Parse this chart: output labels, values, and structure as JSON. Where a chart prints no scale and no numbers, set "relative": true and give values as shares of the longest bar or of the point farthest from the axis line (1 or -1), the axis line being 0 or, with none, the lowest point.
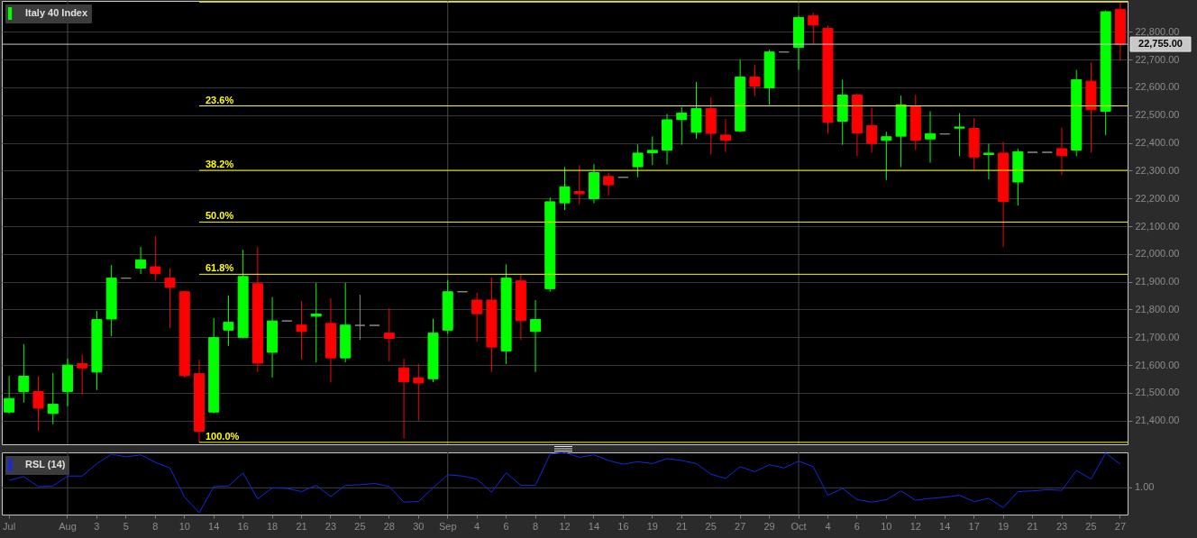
{
  "chart_data": [
    {
      "type": "candlestick",
      "categories": [
        "Jul",
        null,
        null,
        null,
        "Aug",
        null,
        "3",
        null,
        "5",
        null,
        "8",
        null,
        "10",
        null,
        "14",
        null,
        "16",
        null,
        "18",
        null,
        "21",
        null,
        "23",
        null,
        "25",
        null,
        "28",
        null,
        "30",
        null,
        "Sep",
        null,
        "4",
        null,
        "6",
        null,
        "8",
        null,
        "12",
        null,
        "14",
        null,
        "16",
        null,
        "19",
        null,
        "21",
        null,
        "25",
        null,
        "27",
        null,
        "29",
        null,
        "Oct",
        null,
        "4",
        null,
        "6",
        null,
        "10",
        null,
        "12",
        null,
        "14",
        null,
        "17",
        null,
        "19",
        null,
        "21",
        null,
        "23",
        null,
        "25",
        null,
        "27"
      ],
      "series": [
        {
          "name": "Italy 40 Index",
          "color": "#00ff00",
          "ohlc": [
            [
              21431,
              21561,
              21424,
              21480
            ],
            [
              21505,
              21676,
              21465,
              21560
            ],
            [
              21505,
              21560,
              21363,
              21445
            ],
            [
              21426,
              21572,
              21387,
              21459
            ],
            [
              21505,
              21623,
              21452,
              21600
            ],
            [
              21605,
              21638,
              21494,
              21590
            ],
            [
              21575,
              21795,
              21510,
              21764
            ],
            [
              21766,
              21960,
              21704,
              21913
            ],
            [
              21913,
              21913,
              21913,
              21913
            ],
            [
              21949,
              22025,
              21928,
              21979
            ],
            [
              21954,
              22064,
              21905,
              21930
            ],
            [
              21913,
              21949,
              21733,
              21880
            ],
            [
              21864,
              21868,
              21555,
              21562
            ],
            [
              21569,
              21620,
              21322,
              21362
            ],
            [
              21431,
              21769,
              21426,
              21699
            ],
            [
              21726,
              21850,
              21669,
              21754
            ],
            [
              21700,
              22015,
              21696,
              21919
            ],
            [
              21893,
              22025,
              21575,
              21607
            ],
            [
              21646,
              21845,
              21555,
              21759
            ],
            [
              21759,
              21759,
              21759,
              21759
            ],
            [
              21744,
              21831,
              21620,
              21721
            ],
            [
              21776,
              21896,
              21610,
              21784
            ],
            [
              21750,
              21840,
              21539,
              21626
            ],
            [
              21626,
              21896,
              21610,
              21744
            ],
            [
              21743,
              21853,
              21691,
              21743
            ],
            [
              21743,
              21743,
              21743,
              21743
            ],
            [
              21715,
              21805,
              21613,
              21696
            ],
            [
              21590,
              21623,
              21335,
              21540
            ],
            [
              21554,
              21605,
              21400,
              21536
            ],
            [
              21551,
              21767,
              21539,
              21715
            ],
            [
              21726,
              21906,
              21712,
              21864
            ],
            [
              21864,
              21864,
              21864,
              21864
            ],
            [
              21834,
              21860,
              21685,
              21785
            ],
            [
              21834,
              21915,
              21575,
              21665
            ],
            [
              21651,
              21963,
              21604,
              21913
            ],
            [
              21903,
              21927,
              21691,
              21760
            ],
            [
              21721,
              21834,
              21575,
              21764
            ],
            [
              21875,
              22203,
              21864,
              22188
            ],
            [
              22184,
              22313,
              22158,
              22242
            ],
            [
              22225,
              22320,
              22179,
              22217
            ],
            [
              22199,
              22323,
              22183,
              22293
            ],
            [
              22279,
              22293,
              22210,
              22249
            ],
            [
              22276,
              22276,
              22276,
              22276
            ],
            [
              22314,
              22394,
              22276,
              22363
            ],
            [
              22364,
              22423,
              22320,
              22373
            ],
            [
              22374,
              22504,
              22322,
              22483
            ],
            [
              22484,
              22528,
              22393,
              22507
            ],
            [
              22438,
              22619,
              22415,
              22523
            ],
            [
              22523,
              22563,
              22358,
              22434
            ],
            [
              22428,
              22485,
              22367,
              22409
            ],
            [
              22443,
              22699,
              22438,
              22637
            ],
            [
              22637,
              22680,
              22568,
              22604
            ],
            [
              22598,
              22735,
              22537,
              22727
            ],
            [
              22727,
              22727,
              22727,
              22727
            ],
            [
              22744,
              22857,
              22663,
              22851
            ],
            [
              22857,
              22868,
              22755,
              22824
            ],
            [
              22812,
              22822,
              22433,
              22474
            ],
            [
              22478,
              22627,
              22393,
              22572
            ],
            [
              22572,
              22578,
              22352,
              22435
            ],
            [
              22462,
              22527,
              22365,
              22398
            ],
            [
              22409,
              22440,
              22266,
              22422
            ],
            [
              22424,
              22570,
              22313,
              22537
            ],
            [
              22532,
              22573,
              22374,
              22409
            ],
            [
              22414,
              22514,
              22328,
              22433
            ],
            [
              22432,
              22432,
              22432,
              22432
            ],
            [
              22453,
              22507,
              22352,
              22457
            ],
            [
              22452,
              22489,
              22303,
              22349
            ],
            [
              22358,
              22397,
              22268,
              22363
            ],
            [
              22363,
              22404,
              22025,
              22189
            ],
            [
              22259,
              22379,
              22174,
              22368
            ],
            [
              22366,
              22366,
              22366,
              22366
            ],
            [
              22366,
              22366,
              22366,
              22366
            ],
            [
              22379,
              22455,
              22284,
              22354
            ],
            [
              22374,
              22663,
              22352,
              22627
            ],
            [
              22622,
              22690,
              22366,
              22519
            ],
            [
              22514,
              22876,
              22428,
              22872
            ],
            [
              22881,
              22907,
              22697,
              22755
            ]
          ],
          "colors": [
            "#00ff00",
            "#00ff00",
            "#ff0000",
            "#00ff00",
            "#00ff00",
            "#ff0000",
            "#00ff00",
            "#00ff00",
            "#8c8c8c",
            "#00ff00",
            "#ff0000",
            "#ff0000",
            "#ff0000",
            "#ff0000",
            "#00ff00",
            "#00ff00",
            "#00ff00",
            "#ff0000",
            "#00ff00",
            "#8c8c8c",
            "#ff0000",
            "#00ff00",
            "#ff0000",
            "#00ff00",
            "#8c8c8c",
            "#8c8c8c",
            "#ff0000",
            "#ff0000",
            "#ff0000",
            "#00ff00",
            "#00ff00",
            "#8c8c8c",
            "#ff0000",
            "#ff0000",
            "#00ff00",
            "#ff0000",
            "#00ff00",
            "#00ff00",
            "#00ff00",
            "#ff0000",
            "#00ff00",
            "#ff0000",
            "#8c8c8c",
            "#00ff00",
            "#00ff00",
            "#00ff00",
            "#00ff00",
            "#00ff00",
            "#ff0000",
            "#ff0000",
            "#00ff00",
            "#ff0000",
            "#00ff00",
            "#8c8c8c",
            "#00ff00",
            "#ff0000",
            "#ff0000",
            "#00ff00",
            "#ff0000",
            "#ff0000",
            "#00ff00",
            "#00ff00",
            "#ff0000",
            "#00ff00",
            "#8c8c8c",
            "#00ff00",
            "#ff0000",
            "#00ff00",
            "#ff0000",
            "#00ff00",
            "#8c8c8c",
            "#8c8c8c",
            "#ff0000",
            "#00ff00",
            "#ff0000",
            "#00ff00",
            "#ff0000"
          ]
        }
      ],
      "ylim": [
        21315,
        22911
      ],
      "yticks": [
        {
          "value": 21400,
          "label": "21,400.00"
        },
        {
          "value": 21500,
          "label": "21,500.00"
        },
        {
          "value": 21600,
          "label": "21,600.00"
        },
        {
          "value": 21700,
          "label": "21,700.00"
        },
        {
          "value": 21800,
          "label": "21,800.00"
        },
        {
          "value": 21900,
          "label": "21,900.00"
        },
        {
          "value": 22000,
          "label": "22,000.00"
        },
        {
          "value": 22100,
          "label": "22,100.00"
        },
        {
          "value": 22200,
          "label": "22,200.00"
        },
        {
          "value": 22300,
          "label": "22,300.00"
        },
        {
          "value": 22400,
          "label": "22,400.00"
        },
        {
          "value": 22500,
          "label": "22,500.00"
        },
        {
          "value": 22600,
          "label": "22,600.00"
        },
        {
          "value": 22700,
          "label": "22,700.00"
        },
        {
          "value": 22800,
          "label": "22,800.00"
        }
      ],
      "grid": "y",
      "legend": "top left",
      "tick_labels": "y",
      "ref_lines": [
        {
          "axis": "x",
          "value": "Aug",
          "color": "#484848"
        },
        {
          "axis": "x",
          "value": "Sep",
          "color": "#484848"
        },
        {
          "axis": "x",
          "value": "Oct",
          "color": "#484848"
        },
        {
          "axis": "y",
          "value": 22907,
          "color": "#ffff00"
        },
        {
          "axis": "y",
          "value": 22533,
          "color": "#ffff00"
        },
        {
          "axis": "y",
          "value": 22301,
          "color": "#ffff00"
        },
        {
          "axis": "y",
          "value": 22115,
          "color": "#ffff00"
        },
        {
          "axis": "y",
          "value": 21927,
          "color": "#ffff00"
        },
        {
          "axis": "y",
          "value": 21322,
          "color": "#ffff00"
        },
        {
          "axis": "y",
          "value": 22755,
          "label": "22,755.00",
          "color": "#c8c8c8"
        }
      ],
      "annotations": [
        {
          "text": "23.6%",
          "y": 22533
        },
        {
          "text": "38.2%",
          "y": 22301
        },
        {
          "text": "50.0%",
          "y": 22115
        },
        {
          "text": "61.8%",
          "y": 21927
        },
        {
          "text": "100.0%",
          "y": 21322
        }
      ]
    },
    {
      "type": "line",
      "relative": true,
      "categories": [
        "Jul",
        null,
        null,
        null,
        "Aug",
        null,
        "3",
        null,
        "5",
        null,
        "8",
        null,
        "10",
        null,
        "14",
        null,
        "16",
        null,
        "18",
        null,
        "21",
        null,
        "23",
        null,
        "25",
        null,
        "28",
        null,
        "30",
        null,
        "Sep",
        null,
        "4",
        null,
        "6",
        null,
        "8",
        null,
        "12",
        null,
        "14",
        null,
        "16",
        null,
        "19",
        null,
        "21",
        null,
        "25",
        null,
        "27",
        null,
        "29",
        null,
        "Oct",
        null,
        "4",
        null,
        "6",
        null,
        "10",
        null,
        "12",
        null,
        "14",
        null,
        "17",
        null,
        "19",
        null,
        "21",
        null,
        "23",
        null,
        "25",
        null,
        "27"
      ],
      "series": [
        {
          "name": "RSL (14)",
          "color": "#1428e6",
          "values": [
            0.55,
            0.61,
            0.45,
            0.46,
            0.62,
            0.62,
            0.82,
            0.97,
            0.93,
            0.96,
            0.84,
            0.75,
            0.28,
            0.03,
            0.45,
            0.46,
            0.67,
            0.25,
            0.43,
            0.42,
            0.37,
            0.47,
            0.29,
            0.47,
            0.48,
            0.5,
            0.45,
            0.2,
            0.21,
            0.43,
            0.64,
            0.62,
            0.57,
            0.36,
            0.67,
            0.47,
            0.47,
            0.97,
            1.0,
            0.92,
            0.96,
            0.87,
            0.81,
            0.85,
            0.82,
            0.9,
            0.87,
            0.82,
            0.65,
            0.58,
            0.77,
            0.69,
            0.8,
            0.75,
            0.86,
            0.77,
            0.31,
            0.42,
            0.24,
            0.2,
            0.24,
            0.38,
            0.23,
            0.26,
            0.28,
            0.31,
            0.21,
            0.26,
            0.11,
            0.37,
            0.38,
            0.4,
            0.39,
            0.71,
            0.57,
            0.99,
            0.81
          ]
        }
      ],
      "legend": "top left",
      "tick_labels": "x",
      "ref_lines": [
        {
          "axis": "x",
          "value": "Aug",
          "color": "#484848"
        },
        {
          "axis": "x",
          "value": "Sep",
          "color": "#484848"
        },
        {
          "axis": "x",
          "value": "Oct",
          "color": "#484848"
        },
        {
          "axis": "y",
          "value": 0.43,
          "color": "#404040"
        }
      ],
      "annotations": [
        "1.00"
      ]
    }
  ]
}
